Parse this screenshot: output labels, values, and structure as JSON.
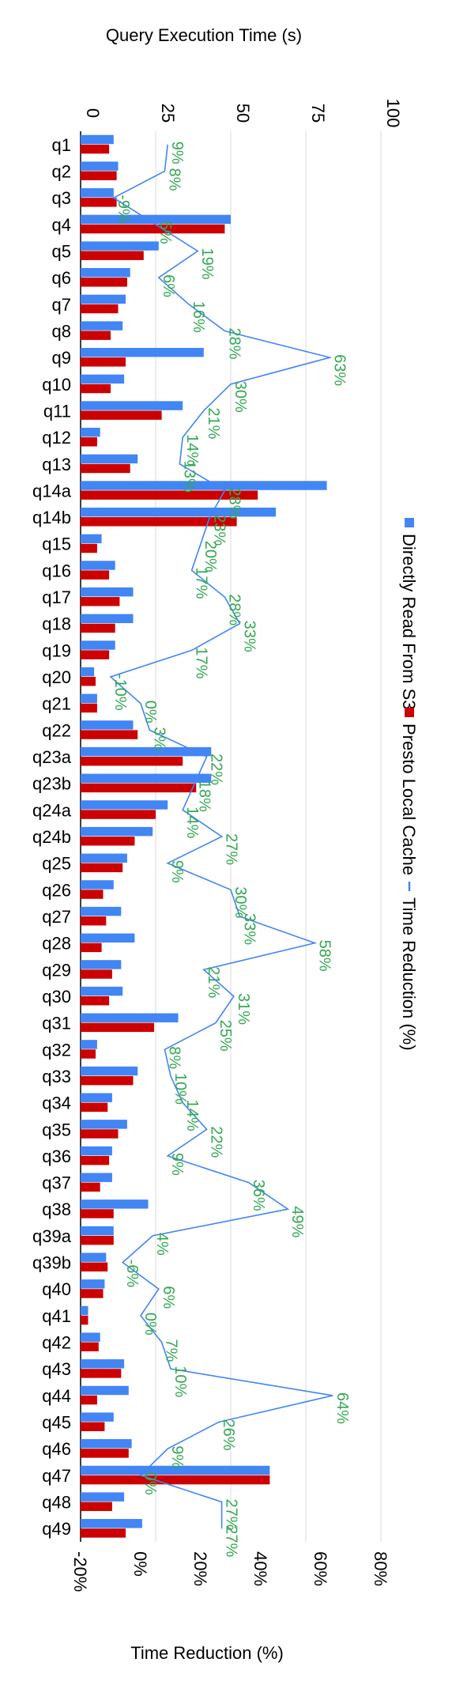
{
  "chart_data": {
    "type": "bar",
    "orientation": "horizontal",
    "title": "",
    "top_axis": {
      "label": "Query Execution Time (s)",
      "range": [
        0,
        100
      ],
      "ticks": [
        0,
        25,
        50,
        75,
        100
      ],
      "tick_labels": [
        "0",
        "25",
        "50",
        "75",
        "100"
      ]
    },
    "bottom_axis": {
      "label": "Time Reduction (%)",
      "range": [
        -20,
        80
      ],
      "ticks": [
        -20,
        0,
        20,
        40,
        60,
        80
      ],
      "tick_labels": [
        "-20%",
        "0%",
        "20%",
        "40%",
        "60%",
        "80%"
      ]
    },
    "grid": true,
    "legend_position": "right",
    "categories": [
      "q1",
      "q2",
      "q3",
      "q4",
      "q5",
      "q6",
      "q7",
      "q8",
      "q9",
      "q10",
      "q11",
      "q12",
      "q13",
      "q14a",
      "q14b",
      "q15",
      "q16",
      "q17",
      "q18",
      "q19",
      "q20",
      "q21",
      "q22",
      "q23a",
      "q23b",
      "q24a",
      "q24b",
      "q25",
      "q26",
      "q27",
      "q28",
      "q29",
      "q30",
      "q31",
      "q32",
      "q33",
      "q34",
      "q35",
      "q36",
      "q37",
      "q38",
      "q39a",
      "q39b",
      "q40",
      "q41",
      "q42",
      "q43",
      "q44",
      "q45",
      "q46",
      "q47",
      "q48",
      "q49"
    ],
    "series": [
      {
        "name": "Directly Read From S3",
        "color": "#4285f4",
        "axis": "top",
        "values": [
          11,
          12.5,
          11,
          50,
          26,
          16.5,
          15,
          14,
          41,
          14.5,
          34,
          6.5,
          19,
          82,
          65,
          7,
          11.5,
          17.5,
          17.5,
          11.5,
          4.5,
          5.5,
          17.5,
          43.5,
          43.5,
          29,
          24,
          15.5,
          11,
          13.5,
          18,
          13.5,
          14,
          32.5,
          5.5,
          19,
          10.5,
          15.5,
          10.5,
          10.5,
          22.5,
          11,
          8.5,
          8,
          2.5,
          6.5,
          14.5,
          16,
          11,
          17,
          63,
          14.5,
          20.5
        ]
      },
      {
        "name": "Presto Local Cache",
        "color": "#cc0000",
        "axis": "top",
        "values": [
          9.5,
          12,
          12,
          48,
          21,
          15.5,
          12.5,
          10,
          15,
          10,
          27,
          5.5,
          16.5,
          59,
          52,
          5.5,
          9.5,
          13,
          11.5,
          9.5,
          5,
          5.5,
          19,
          34,
          38.5,
          25,
          18,
          14,
          7.5,
          8.5,
          7,
          10.5,
          9.5,
          24.5,
          5,
          17.5,
          9,
          12.5,
          9.5,
          6.5,
          11,
          11,
          9,
          7.5,
          2.5,
          6,
          13.5,
          5.5,
          8,
          16,
          63,
          10.5,
          15
        ]
      },
      {
        "name": "Time Reduction (%)",
        "color": "#4285f4",
        "axis": "bottom",
        "type": "line",
        "values": [
          9,
          8,
          -9,
          5,
          19,
          6,
          16,
          28,
          63,
          30,
          21,
          14,
          13,
          28,
          23,
          20,
          17,
          28,
          33,
          17,
          -10,
          0,
          3,
          22,
          18,
          14,
          27,
          9,
          30,
          33,
          58,
          21,
          31,
          25,
          8,
          10,
          14,
          22,
          9,
          36,
          49,
          4,
          -6,
          6,
          0,
          7,
          10,
          64,
          26,
          9,
          0,
          27,
          27
        ],
        "labels": [
          "9%",
          "8%",
          "-9%",
          "5%",
          "19%",
          "6%",
          "16%",
          "28%",
          "63%",
          "30%",
          "21%",
          "14%",
          "13%",
          "28%",
          "23%",
          "20%",
          "17%",
          "28%",
          "33%",
          "17%",
          "-10%",
          "0%",
          "3%",
          "22%",
          "18%",
          "14%",
          "27%",
          "9%",
          "30%",
          "33%",
          "58%",
          "21%",
          "31%",
          "25%",
          "8%",
          "10%",
          "14%",
          "22%",
          "9%",
          "36%",
          "49%",
          "4%",
          "-6%",
          "6%",
          "0%",
          "7%",
          "10%",
          "64%",
          "26%",
          "9%",
          "0%",
          "27%",
          "27%"
        ]
      }
    ]
  },
  "colors": {
    "label_green": "#34a853",
    "grid": "#d9d9d9",
    "axis": "#000000"
  }
}
